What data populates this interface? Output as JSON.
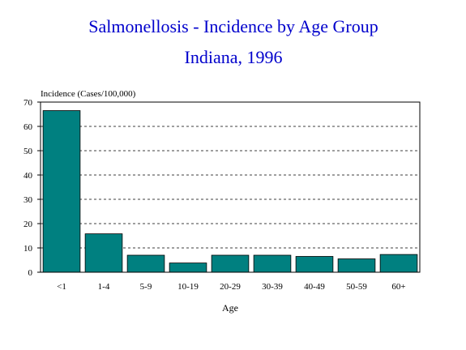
{
  "chart_data": {
    "type": "bar",
    "title": "Salmonellosis - Incidence by Age Group",
    "subtitle": "Indiana, 1996",
    "ylabel": "Incidence (Cases/100,000)",
    "xlabel": "Age",
    "categories": [
      "<1",
      "1-4",
      "5-9",
      "10-19",
      "20-29",
      "30-39",
      "40-49",
      "50-59",
      "60+"
    ],
    "values": [
      66.5,
      15.8,
      7.0,
      3.8,
      7.0,
      7.0,
      6.5,
      5.5,
      7.3
    ],
    "ylim": [
      0,
      70
    ],
    "yticks": [
      0,
      10,
      20,
      30,
      40,
      50,
      60,
      70
    ],
    "grid": true,
    "legend": "none",
    "colors": {
      "bar": "#008080",
      "title": "#0000cc",
      "grid": "#000000"
    }
  }
}
